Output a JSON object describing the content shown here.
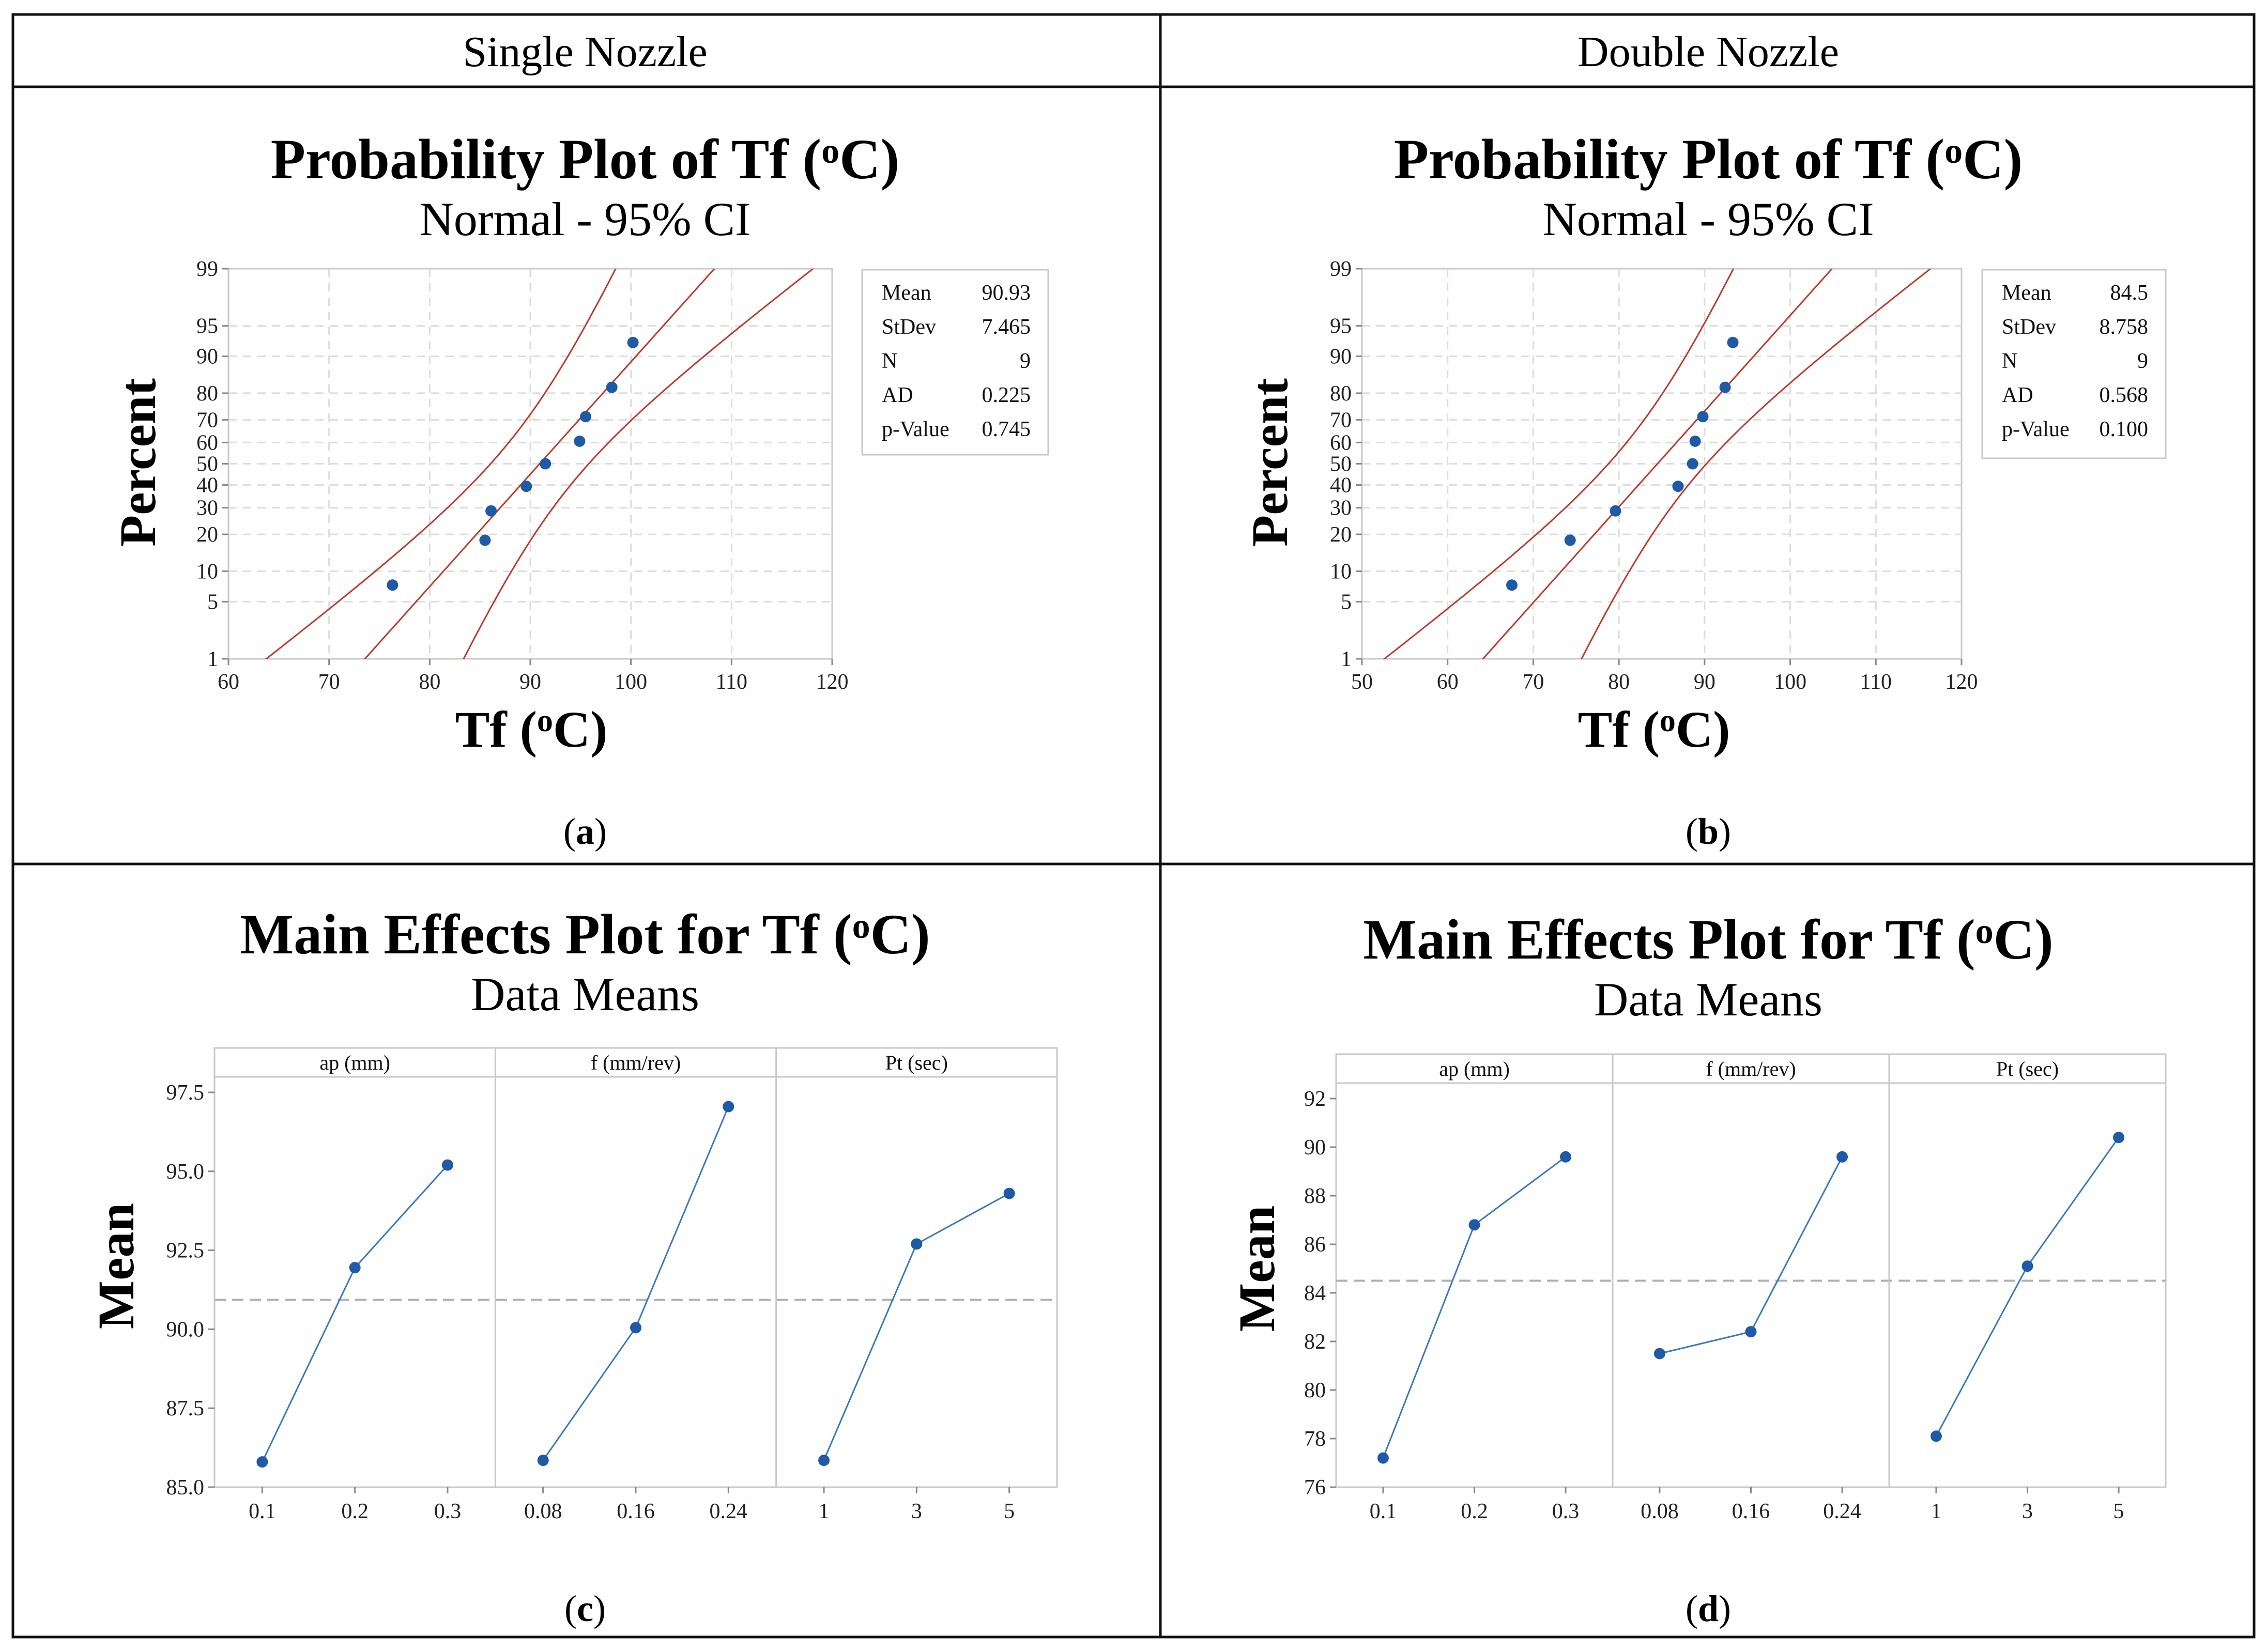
{
  "headers": {
    "single": "Single Nozzle",
    "double": "Double Nozzle"
  },
  "panels": {
    "a": {
      "label_pre": "(",
      "label_letter": "a",
      "label_post": ")",
      "title_pre": "Probability Plot of Tf (",
      "title_sup": "o",
      "title_post": "C)",
      "subtitle": "Normal - 95% CI",
      "xlabel_pre": "Tf (",
      "xlabel_sup": "o",
      "xlabel_post": "C)",
      "ylabel": "Percent",
      "legend": [
        {
          "label": "Mean",
          "value": "90.93"
        },
        {
          "label": "StDev",
          "value": "7.465"
        },
        {
          "label": "N",
          "value": "9"
        },
        {
          "label": "AD",
          "value": "0.225"
        },
        {
          "label": "p-Value",
          "value": "0.745"
        }
      ]
    },
    "b": {
      "label_pre": "(",
      "label_letter": "b",
      "label_post": ")",
      "title_pre": "Probability Plot of Tf (",
      "title_sup": "o",
      "title_post": "C)",
      "subtitle": "Normal - 95% CI",
      "xlabel_pre": "Tf (",
      "xlabel_sup": "o",
      "xlabel_post": "C)",
      "ylabel": "Percent",
      "legend": [
        {
          "label": "Mean",
          "value": "84.5"
        },
        {
          "label": "StDev",
          "value": "8.758"
        },
        {
          "label": "N",
          "value": "9"
        },
        {
          "label": "AD",
          "value": "0.568"
        },
        {
          "label": "p-Value",
          "value": "0.100"
        }
      ]
    },
    "c": {
      "label_pre": "(",
      "label_letter": "c",
      "label_post": ")",
      "title_pre": "Main Effects Plot for Tf (",
      "title_sup": "o",
      "title_post": "C)",
      "subtitle": "Data Means",
      "ylabel": "Mean"
    },
    "d": {
      "label_pre": "(",
      "label_letter": "d",
      "label_post": ")",
      "title_pre": "Main Effects Plot for Tf (",
      "title_sup": "o",
      "title_post": "C)",
      "subtitle": "Data Means",
      "ylabel": "Mean"
    }
  },
  "colors": {
    "points": "#1f5aa6",
    "ci": "#c0392b",
    "ref": "#b0b0b0",
    "line": "#3a78c0"
  },
  "chart_data": [
    {
      "id": "a",
      "type": "scatter",
      "title": "Probability Plot of Tf (oC)",
      "subtitle": "Normal - 95% CI",
      "xlabel": "Tf (oC)",
      "ylabel": "Percent",
      "xlim": [
        60,
        120
      ],
      "xticks": [
        60,
        70,
        80,
        90,
        100,
        110,
        120
      ],
      "yticks": [
        1,
        5,
        10,
        20,
        30,
        40,
        50,
        60,
        70,
        80,
        90,
        95,
        99
      ],
      "mean": 90.93,
      "stdev": 7.465,
      "n": 9,
      "ci": 95,
      "points": [
        {
          "x": 76.3,
          "p": 7.4
        },
        {
          "x": 85.5,
          "p": 18.1
        },
        {
          "x": 86.1,
          "p": 28.7
        },
        {
          "x": 89.6,
          "p": 39.4
        },
        {
          "x": 91.5,
          "p": 50.0
        },
        {
          "x": 94.9,
          "p": 60.6
        },
        {
          "x": 95.5,
          "p": 71.3
        },
        {
          "x": 98.1,
          "p": 81.9
        },
        {
          "x": 100.2,
          "p": 92.6
        }
      ]
    },
    {
      "id": "b",
      "type": "scatter",
      "title": "Probability Plot of Tf (oC)",
      "subtitle": "Normal - 95% CI",
      "xlabel": "Tf (oC)",
      "ylabel": "Percent",
      "xlim": [
        50,
        120
      ],
      "xticks": [
        50,
        60,
        70,
        80,
        90,
        100,
        110,
        120
      ],
      "yticks": [
        1,
        5,
        10,
        20,
        30,
        40,
        50,
        60,
        70,
        80,
        90,
        95,
        99
      ],
      "mean": 84.5,
      "stdev": 8.758,
      "n": 9,
      "ci": 95,
      "points": [
        {
          "x": 67.5,
          "p": 7.4
        },
        {
          "x": 74.3,
          "p": 18.1
        },
        {
          "x": 79.6,
          "p": 28.7
        },
        {
          "x": 86.9,
          "p": 39.4
        },
        {
          "x": 88.6,
          "p": 50.0
        },
        {
          "x": 88.9,
          "p": 60.6
        },
        {
          "x": 89.8,
          "p": 71.3
        },
        {
          "x": 92.4,
          "p": 81.9
        },
        {
          "x": 93.3,
          "p": 92.6
        }
      ]
    },
    {
      "id": "c",
      "type": "line",
      "title": "Main Effects Plot for Tf (oC)",
      "subtitle": "Data Means",
      "ylabel": "Mean",
      "ylim": [
        85.0,
        97.5
      ],
      "yticks": [
        "85.0",
        "87.5",
        "90.0",
        "92.5",
        "95.0",
        "97.5"
      ],
      "overall_mean": 90.93,
      "factors": [
        {
          "name": "ap (mm)",
          "levels": [
            "0.1",
            "0.2",
            "0.3"
          ],
          "means": [
            85.8,
            91.95,
            95.2
          ]
        },
        {
          "name": "f (mm/rev)",
          "levels": [
            "0.08",
            "0.16",
            "0.24"
          ],
          "means": [
            85.85,
            90.05,
            97.05
          ]
        },
        {
          "name": "Pt (sec)",
          "levels": [
            "1",
            "3",
            "5"
          ],
          "means": [
            85.85,
            92.7,
            94.3
          ]
        }
      ]
    },
    {
      "id": "d",
      "type": "line",
      "title": "Main Effects Plot for Tf (oC)",
      "subtitle": "Data Means",
      "ylabel": "Mean",
      "ylim": [
        76,
        92
      ],
      "yticks": [
        "76",
        "78",
        "80",
        "82",
        "84",
        "86",
        "88",
        "90",
        "92"
      ],
      "overall_mean": 84.5,
      "factors": [
        {
          "name": "ap (mm)",
          "levels": [
            "0.1",
            "0.2",
            "0.3"
          ],
          "means": [
            77.2,
            86.8,
            89.6
          ]
        },
        {
          "name": "f (mm/rev)",
          "levels": [
            "0.08",
            "0.16",
            "0.24"
          ],
          "means": [
            81.5,
            82.4,
            89.6
          ]
        },
        {
          "name": "Pt (sec)",
          "levels": [
            "1",
            "3",
            "5"
          ],
          "means": [
            78.1,
            85.1,
            90.4
          ]
        }
      ]
    }
  ]
}
